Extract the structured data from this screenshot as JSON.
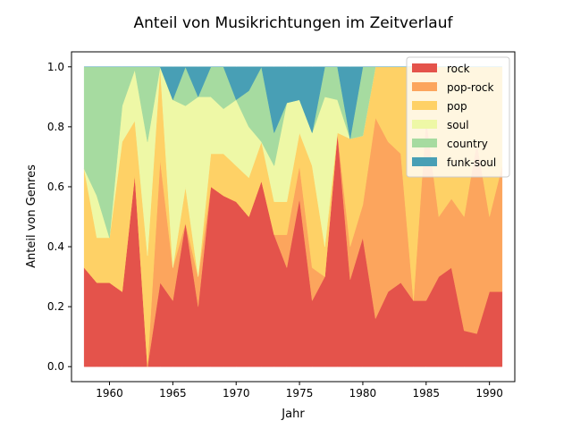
{
  "chart_data": {
    "type": "area",
    "stacked": true,
    "title": "Anteil von Musikrichtungen im Zeitverlauf",
    "xlabel": "Jahr",
    "ylabel": "Anteil von Genres",
    "xlim": [
      1957,
      1992
    ],
    "ylim": [
      -0.05,
      1.05
    ],
    "xticks": [
      1960,
      1965,
      1970,
      1975,
      1980,
      1985,
      1990
    ],
    "yticks": [
      0.0,
      0.2,
      0.4,
      0.6,
      0.8,
      1.0
    ],
    "legend_position": "top-right",
    "grid": false,
    "x": [
      1958,
      1959,
      1960,
      1961,
      1962,
      1963,
      1964,
      1965,
      1966,
      1967,
      1968,
      1969,
      1970,
      1971,
      1972,
      1973,
      1974,
      1975,
      1976,
      1977,
      1978,
      1979,
      1980,
      1981,
      1982,
      1983,
      1984,
      1985,
      1986,
      1987,
      1988,
      1989,
      1990,
      1991
    ],
    "series": [
      {
        "name": "rock",
        "color": "#e4534b",
        "values": [
          0.33,
          0.28,
          0.28,
          0.25,
          0.64,
          0.0,
          0.28,
          0.22,
          0.48,
          0.2,
          0.6,
          0.57,
          0.55,
          0.5,
          0.62,
          0.44,
          0.33,
          0.56,
          0.22,
          0.3,
          0.78,
          0.29,
          0.43,
          0.16,
          0.25,
          0.28,
          0.22,
          0.22,
          0.3,
          0.33,
          0.12,
          0.11,
          0.25,
          0.25
        ]
      },
      {
        "name": "pop-rock",
        "color": "#fca55d",
        "values": [
          0.0,
          0.0,
          0.0,
          0.0,
          0.0,
          0.0,
          0.41,
          0.11,
          0.0,
          0.1,
          0.0,
          0.0,
          0.0,
          0.0,
          0.0,
          0.0,
          0.11,
          0.11,
          0.11,
          0.0,
          0.0,
          0.11,
          0.11,
          0.67,
          0.5,
          0.43,
          0.0,
          0.61,
          0.2,
          0.23,
          0.38,
          0.64,
          0.25,
          0.42
        ]
      },
      {
        "name": "pop",
        "color": "#fed166",
        "values": [
          0.33,
          0.15,
          0.15,
          0.5,
          0.18,
          0.37,
          0.31,
          0.0,
          0.12,
          0.0,
          0.11,
          0.14,
          0.12,
          0.13,
          0.13,
          0.11,
          0.11,
          0.11,
          0.34,
          0.1,
          0.0,
          0.36,
          0.23,
          0.17,
          0.25,
          0.29,
          0.78,
          0.17,
          0.5,
          0.44,
          0.5,
          0.25,
          0.5,
          0.33
        ]
      },
      {
        "name": "soul",
        "color": "#eef8a6",
        "values": [
          0.0,
          0.14,
          0.0,
          0.12,
          0.17,
          0.38,
          0.0,
          0.56,
          0.27,
          0.6,
          0.19,
          0.15,
          0.22,
          0.17,
          0.0,
          0.12,
          0.33,
          0.11,
          0.11,
          0.5,
          0.11,
          0.0,
          0.0,
          0.0,
          0.0,
          0.0,
          0.0,
          0.0,
          0.0,
          0.0,
          0.0,
          0.0,
          0.0,
          0.0
        ]
      },
      {
        "name": "country",
        "color": "#a6dba0",
        "values": [
          0.34,
          0.43,
          0.57,
          0.13,
          0.01,
          0.25,
          0.0,
          0.0,
          0.13,
          0.0,
          0.1,
          0.14,
          0.0,
          0.12,
          0.25,
          0.11,
          0.0,
          0.0,
          0.0,
          0.1,
          0.11,
          0.0,
          0.23,
          0.0,
          0.0,
          0.0,
          0.0,
          0.0,
          0.0,
          0.0,
          0.0,
          0.0,
          0.0,
          0.0
        ]
      },
      {
        "name": "funk-soul",
        "color": "#489fb5",
        "values": [
          0.0,
          0.0,
          0.0,
          0.0,
          0.0,
          0.0,
          0.0,
          0.11,
          0.0,
          0.1,
          0.0,
          0.0,
          0.11,
          0.08,
          0.0,
          0.22,
          0.12,
          0.11,
          0.22,
          0.0,
          0.0,
          0.24,
          0.0,
          0.0,
          0.0,
          0.0,
          0.0,
          0.0,
          0.0,
          0.0,
          0.0,
          0.0,
          0.0,
          0.0
        ]
      }
    ]
  }
}
